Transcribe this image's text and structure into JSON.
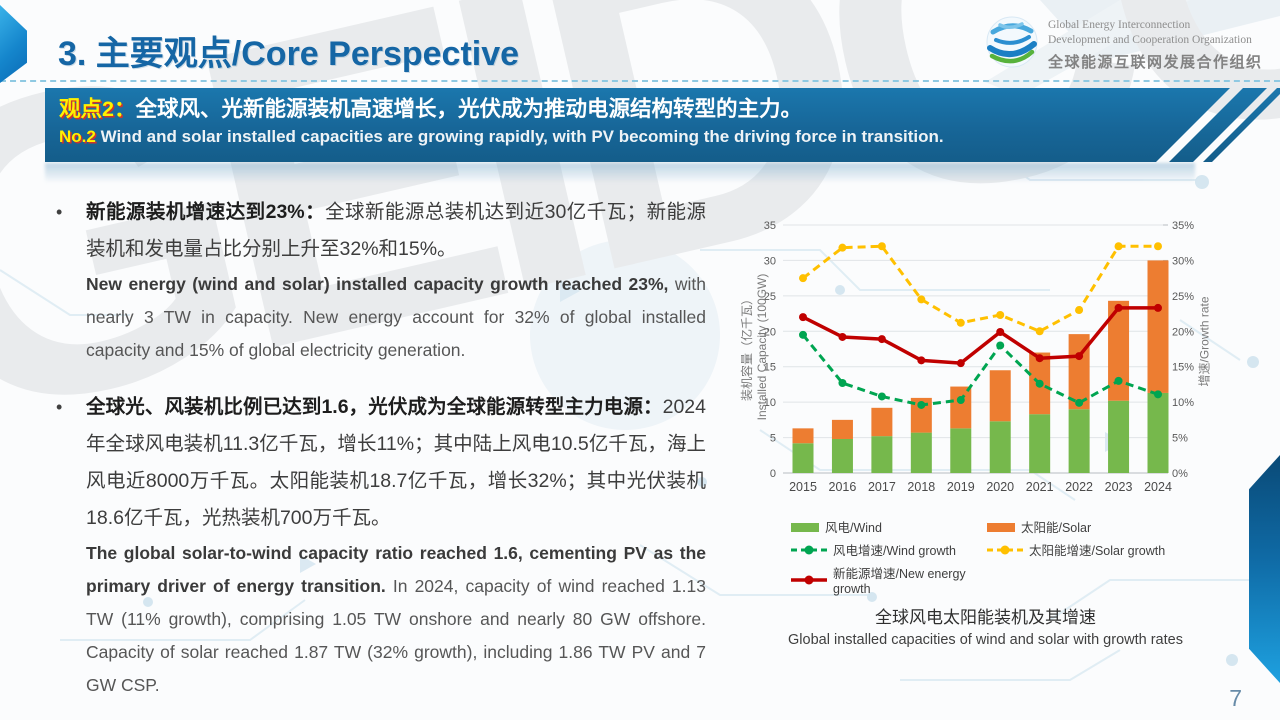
{
  "slide": {
    "title": "3. 主要观点/Core Perspective",
    "page_number": "7",
    "watermark": "GEIDCO",
    "accent_color": "#1566a5",
    "banner_color": "#176698"
  },
  "logo": {
    "line1": "Global Energy Interconnection",
    "line2": "Development and Cooperation Organization",
    "line3": "全球能源互联网发展合作组织"
  },
  "banner": {
    "tag_zh": "观点2：",
    "text_zh": "全球风、光新能源装机高速增长，光伏成为推动电源结构转型的主力。",
    "tag_en": "No.2",
    "text_en": " Wind and solar installed capacities are growing rapidly, with PV becoming the driving force in transition.",
    "tag_color": "#fff100",
    "text_color": "#ffffff"
  },
  "bullets": [
    {
      "zh_bold": "新能源装机增速达到23%：",
      "zh_rest": "全球新能源总装机达到近30亿千瓦；新能源装机和发电量占比分别上升至32%和15%。",
      "en_bold": "New energy (wind and solar) installed capacity growth reached 23%,",
      "en_rest": " with nearly 3 TW in capacity. New energy account for 32% of global installed capacity and 15% of global electricity generation."
    },
    {
      "zh_bold": "全球光、风装机比例已达到1.6，光伏成为全球能源转型主力电源：",
      "zh_rest": "2024年全球风电装机11.3亿千瓦，增长11%；其中陆上风电10.5亿千瓦，海上风电近8000万千瓦。太阳能装机18.7亿千瓦，增长32%；其中光伏装机18.6亿千瓦，光热装机700万千瓦。",
      "en_bold": "The global solar-to-wind capacity ratio reached 1.6, cementing PV as the primary driver of energy transition.",
      "en_rest": " In 2024, capacity of wind reached 1.13 TW (11% growth), comprising 1.05 TW onshore and nearly 80 GW offshore. Capacity of solar reached 1.87 TW (32% growth), including 1.86 TW PV and 7 GW CSP."
    }
  ],
  "chart_data": {
    "type": "bar+line",
    "stacked_bars": true,
    "grid": true,
    "legend_position": "bottom",
    "categories": [
      "2015",
      "2016",
      "2017",
      "2018",
      "2019",
      "2020",
      "2021",
      "2022",
      "2023",
      "2024"
    ],
    "bar_series": [
      {
        "name": "风电/Wind",
        "color": "#76B84C",
        "values": [
          4.2,
          4.8,
          5.2,
          5.7,
          6.3,
          7.3,
          8.3,
          9.0,
          10.2,
          11.3
        ]
      },
      {
        "name": "太阳能/Solar",
        "color": "#ED7D31",
        "values": [
          2.1,
          2.7,
          4.0,
          4.9,
          5.9,
          7.2,
          8.7,
          10.6,
          14.1,
          18.7
        ]
      }
    ],
    "line_series": [
      {
        "name": "风电增速/Wind growth",
        "color": "#00A551",
        "style": "dashed",
        "values": [
          19.5,
          12.7,
          10.8,
          9.6,
          10.3,
          18.0,
          12.6,
          9.9,
          13.0,
          11.1
        ]
      },
      {
        "name": "太阳能增速/Solar growth",
        "color": "#FFC000",
        "style": "dashed",
        "values": [
          27.5,
          31.8,
          32.0,
          24.5,
          21.2,
          22.3,
          20.0,
          23.0,
          32.0,
          32.0
        ]
      },
      {
        "name": "新能源增速/New energy growth",
        "color": "#C00000",
        "style": "solid",
        "values": [
          22.0,
          19.2,
          18.9,
          15.9,
          15.5,
          19.9,
          16.2,
          16.5,
          23.3,
          23.3
        ]
      }
    ],
    "left_axis": {
      "label_zh": "装机容量（亿千瓦）",
      "label_en": "Installed Capacity (100GW)",
      "ticks": [
        0,
        5,
        10,
        15,
        20,
        25,
        30,
        35
      ],
      "max": 35
    },
    "right_axis": {
      "label": "增速/Growth rate",
      "ticks": [
        "0%",
        "5%",
        "10%",
        "15%",
        "20%",
        "25%",
        "30%",
        "35%"
      ],
      "max": 35
    },
    "caption_zh": "全球风电太阳能装机及其增速",
    "caption_en": "Global installed capacities of wind and solar with growth rates"
  }
}
